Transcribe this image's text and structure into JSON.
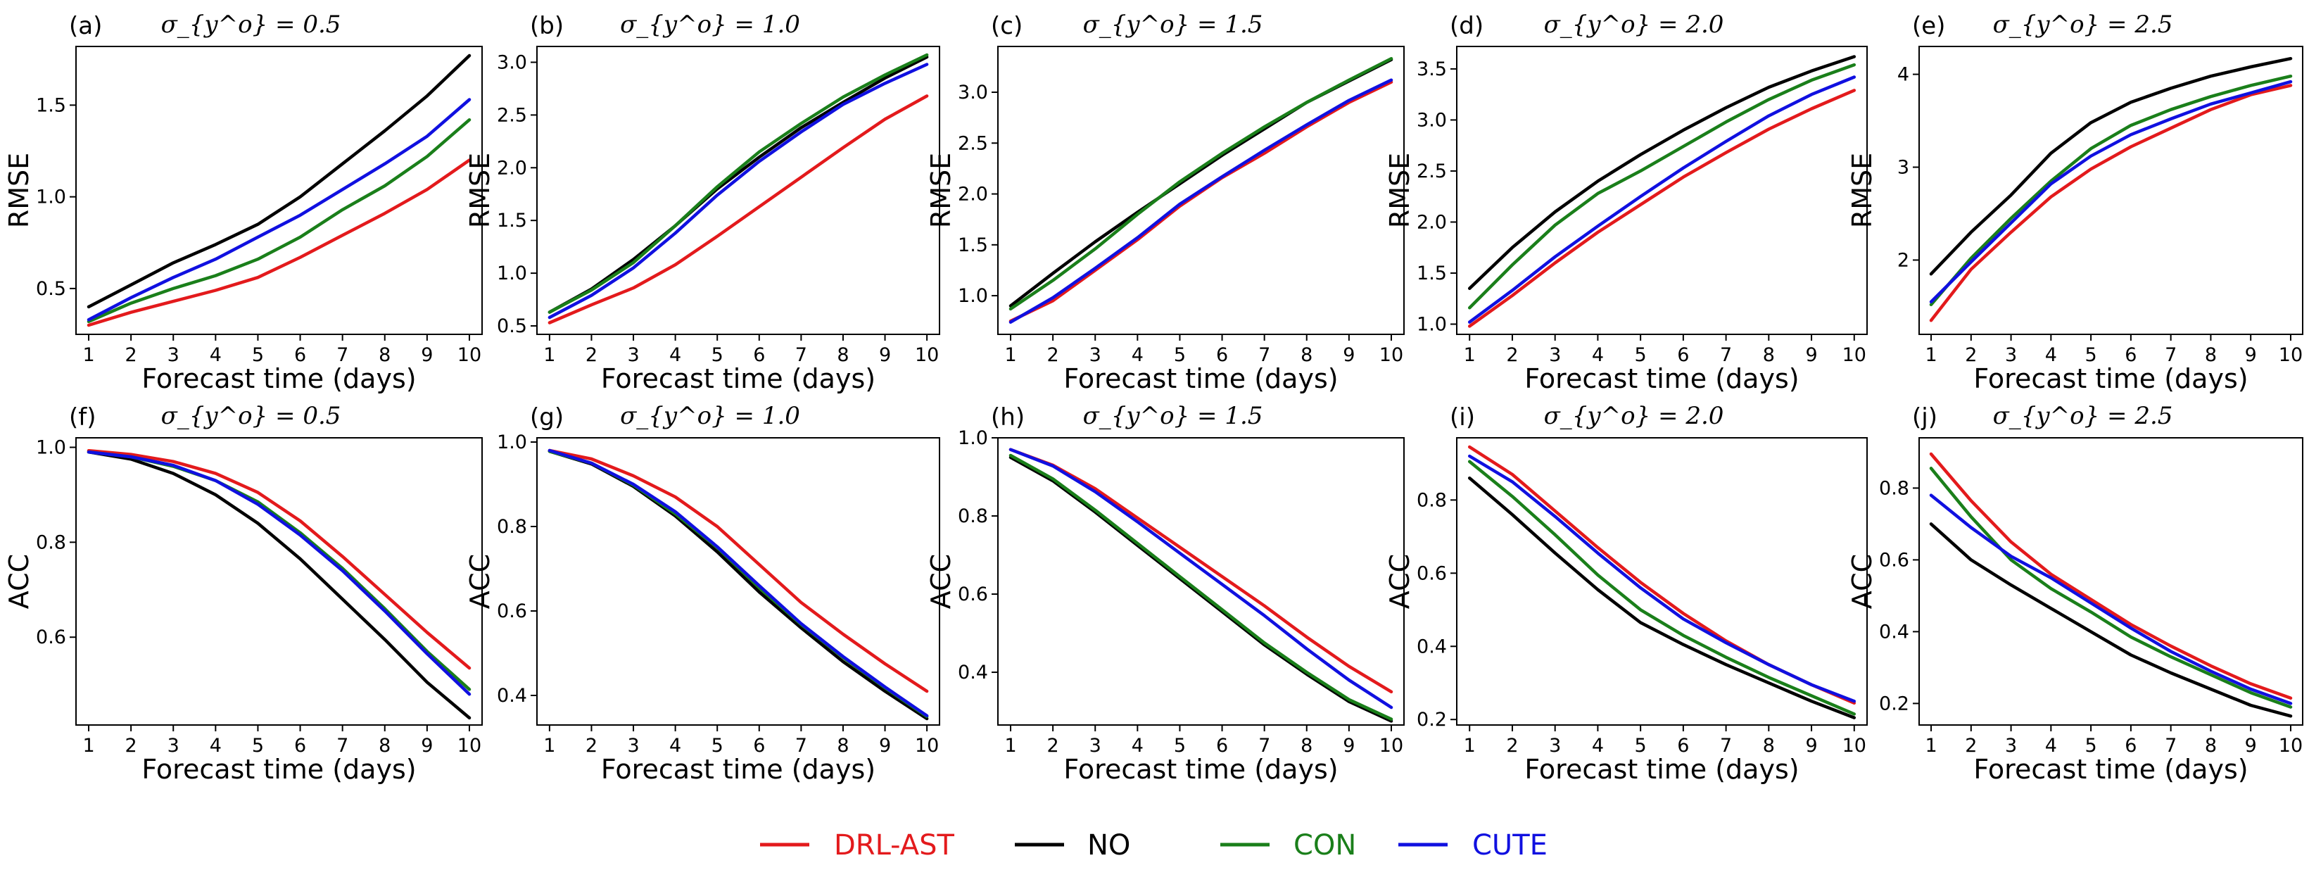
{
  "chart_data": [
    {
      "type": "line",
      "panel": "(a)",
      "title": "σ_{y^o} = 0.5",
      "xlabel": "Forecast time (days)",
      "ylabel": "RMSE",
      "x": [
        1,
        2,
        3,
        4,
        5,
        6,
        7,
        8,
        9,
        10
      ],
      "xlim": [
        0.7,
        10.3
      ],
      "ylim": [
        0.25,
        1.82
      ],
      "yticks": [
        0.5,
        1.0,
        1.5
      ],
      "ytick_labels": [
        "0.5",
        "1.0",
        "1.5"
      ],
      "series": [
        {
          "name": "DRL-AST",
          "values": [
            0.3,
            0.37,
            0.43,
            0.49,
            0.56,
            0.67,
            0.79,
            0.91,
            1.04,
            1.2
          ]
        },
        {
          "name": "NO",
          "values": [
            0.4,
            0.52,
            0.64,
            0.74,
            0.85,
            1.0,
            1.18,
            1.36,
            1.55,
            1.77
          ]
        },
        {
          "name": "CON",
          "values": [
            0.32,
            0.42,
            0.5,
            0.57,
            0.66,
            0.78,
            0.93,
            1.06,
            1.22,
            1.42
          ]
        },
        {
          "name": "CUTE",
          "values": [
            0.33,
            0.45,
            0.56,
            0.66,
            0.78,
            0.9,
            1.04,
            1.18,
            1.33,
            1.53
          ]
        }
      ]
    },
    {
      "type": "line",
      "panel": "(b)",
      "title": "σ_{y^o} = 1.0",
      "xlabel": "Forecast time (days)",
      "ylabel": "RMSE",
      "x": [
        1,
        2,
        3,
        4,
        5,
        6,
        7,
        8,
        9,
        10
      ],
      "xlim": [
        0.7,
        10.3
      ],
      "ylim": [
        0.42,
        3.15
      ],
      "yticks": [
        0.5,
        1.0,
        1.5,
        2.0,
        2.5,
        3.0
      ],
      "ytick_labels": [
        "0.5",
        "1.0",
        "1.5",
        "2.0",
        "2.5",
        "3.0"
      ],
      "series": [
        {
          "name": "DRL-AST",
          "values": [
            0.53,
            0.7,
            0.86,
            1.08,
            1.35,
            1.63,
            1.91,
            2.19,
            2.46,
            2.68
          ]
        },
        {
          "name": "NO",
          "values": [
            0.63,
            0.85,
            1.13,
            1.45,
            1.8,
            2.1,
            2.38,
            2.62,
            2.85,
            3.05
          ]
        },
        {
          "name": "CON",
          "values": [
            0.63,
            0.84,
            1.1,
            1.45,
            1.82,
            2.15,
            2.42,
            2.67,
            2.88,
            3.07
          ]
        },
        {
          "name": "CUTE",
          "values": [
            0.58,
            0.79,
            1.05,
            1.38,
            1.74,
            2.06,
            2.34,
            2.6,
            2.8,
            2.98
          ]
        }
      ]
    },
    {
      "type": "line",
      "panel": "(c)",
      "title": "σ_{y^o} = 1.5",
      "xlabel": "Forecast time (days)",
      "ylabel": "RMSE",
      "x": [
        1,
        2,
        3,
        4,
        5,
        6,
        7,
        8,
        9,
        10
      ],
      "xlim": [
        0.7,
        10.3
      ],
      "ylim": [
        0.62,
        3.45
      ],
      "yticks": [
        1.0,
        1.5,
        2.0,
        2.5,
        3.0
      ],
      "ytick_labels": [
        "1.0",
        "1.5",
        "2.0",
        "2.5",
        "3.0"
      ],
      "series": [
        {
          "name": "DRL-AST",
          "values": [
            0.75,
            0.95,
            1.25,
            1.55,
            1.88,
            2.16,
            2.4,
            2.66,
            2.9,
            3.1
          ]
        },
        {
          "name": "NO",
          "values": [
            0.9,
            1.22,
            1.53,
            1.82,
            2.1,
            2.38,
            2.64,
            2.9,
            3.11,
            3.32
          ]
        },
        {
          "name": "CON",
          "values": [
            0.87,
            1.15,
            1.46,
            1.8,
            2.12,
            2.4,
            2.66,
            2.9,
            3.12,
            3.33
          ]
        },
        {
          "name": "CUTE",
          "values": [
            0.74,
            0.98,
            1.27,
            1.57,
            1.9,
            2.17,
            2.43,
            2.68,
            2.92,
            3.12
          ]
        }
      ]
    },
    {
      "type": "line",
      "panel": "(d)",
      "title": "σ_{y^o} = 2.0",
      "xlabel": "Forecast time (days)",
      "ylabel": "RMSE",
      "x": [
        1,
        2,
        3,
        4,
        5,
        6,
        7,
        8,
        9,
        10
      ],
      "xlim": [
        0.7,
        10.3
      ],
      "ylim": [
        0.9,
        3.72
      ],
      "yticks": [
        1.0,
        1.5,
        2.0,
        2.5,
        3.0,
        3.5
      ],
      "ytick_labels": [
        "1.0",
        "1.5",
        "2.0",
        "2.5",
        "3.0",
        "3.5"
      ],
      "series": [
        {
          "name": "DRL-AST",
          "values": [
            0.98,
            1.28,
            1.6,
            1.9,
            2.17,
            2.44,
            2.68,
            2.91,
            3.11,
            3.29
          ]
        },
        {
          "name": "NO",
          "values": [
            1.35,
            1.75,
            2.1,
            2.4,
            2.66,
            2.9,
            3.12,
            3.32,
            3.48,
            3.62
          ]
        },
        {
          "name": "CON",
          "values": [
            1.16,
            1.58,
            1.97,
            2.28,
            2.5,
            2.74,
            2.98,
            3.2,
            3.39,
            3.54
          ]
        },
        {
          "name": "CUTE",
          "values": [
            1.02,
            1.33,
            1.66,
            1.96,
            2.25,
            2.53,
            2.79,
            3.04,
            3.25,
            3.42
          ]
        }
      ]
    },
    {
      "type": "line",
      "panel": "(e)",
      "title": "σ_{y^o} = 2.5",
      "xlabel": "Forecast time (days)",
      "ylabel": "RMSE",
      "x": [
        1,
        2,
        3,
        4,
        5,
        6,
        7,
        8,
        9,
        10
      ],
      "xlim": [
        0.7,
        10.3
      ],
      "ylim": [
        1.2,
        4.3
      ],
      "yticks": [
        2,
        3,
        4
      ],
      "ytick_labels": [
        "2",
        "3",
        "4"
      ],
      "series": [
        {
          "name": "DRL-AST",
          "values": [
            1.35,
            1.9,
            2.3,
            2.68,
            2.98,
            3.22,
            3.42,
            3.62,
            3.78,
            3.88
          ]
        },
        {
          "name": "NO",
          "values": [
            1.85,
            2.3,
            2.7,
            3.15,
            3.48,
            3.7,
            3.85,
            3.98,
            4.08,
            4.17
          ]
        },
        {
          "name": "CON",
          "values": [
            1.52,
            2.02,
            2.45,
            2.85,
            3.2,
            3.45,
            3.62,
            3.76,
            3.88,
            3.98
          ]
        },
        {
          "name": "CUTE",
          "values": [
            1.55,
            1.98,
            2.4,
            2.82,
            3.12,
            3.35,
            3.52,
            3.68,
            3.8,
            3.92
          ]
        }
      ]
    },
    {
      "type": "line",
      "panel": "(f)",
      "title": "σ_{y^o} = 0.5",
      "xlabel": "Forecast time (days)",
      "ylabel": "ACC",
      "x": [
        1,
        2,
        3,
        4,
        5,
        6,
        7,
        8,
        9,
        10
      ],
      "xlim": [
        0.7,
        10.3
      ],
      "ylim": [
        0.415,
        1.02
      ],
      "yticks": [
        0.6,
        0.8,
        1.0
      ],
      "ytick_labels": [
        "0.6",
        "0.8",
        "1.0"
      ],
      "series": [
        {
          "name": "DRL-AST",
          "values": [
            0.993,
            0.985,
            0.97,
            0.945,
            0.905,
            0.845,
            0.77,
            0.69,
            0.61,
            0.535
          ]
        },
        {
          "name": "NO",
          "values": [
            0.99,
            0.975,
            0.945,
            0.9,
            0.84,
            0.765,
            0.68,
            0.595,
            0.505,
            0.43
          ]
        },
        {
          "name": "CON",
          "values": [
            0.99,
            0.98,
            0.96,
            0.93,
            0.885,
            0.82,
            0.745,
            0.66,
            0.57,
            0.49
          ]
        },
        {
          "name": "CUTE",
          "values": [
            0.99,
            0.98,
            0.962,
            0.93,
            0.88,
            0.815,
            0.74,
            0.655,
            0.565,
            0.48
          ]
        }
      ]
    },
    {
      "type": "line",
      "panel": "(g)",
      "title": "σ_{y^o} = 1.0",
      "xlabel": "Forecast time (days)",
      "ylabel": "ACC",
      "x": [
        1,
        2,
        3,
        4,
        5,
        6,
        7,
        8,
        9,
        10
      ],
      "xlim": [
        0.7,
        10.3
      ],
      "ylim": [
        0.33,
        1.01
      ],
      "yticks": [
        0.4,
        0.6,
        0.8,
        1.0
      ],
      "ytick_labels": [
        "0.4",
        "0.6",
        "0.8",
        "1.0"
      ],
      "series": [
        {
          "name": "DRL-AST",
          "values": [
            0.98,
            0.96,
            0.92,
            0.87,
            0.8,
            0.71,
            0.62,
            0.545,
            0.475,
            0.41
          ]
        },
        {
          "name": "NO",
          "values": [
            0.978,
            0.948,
            0.895,
            0.825,
            0.74,
            0.645,
            0.56,
            0.48,
            0.41,
            0.345
          ]
        },
        {
          "name": "CON",
          "values": [
            0.978,
            0.95,
            0.898,
            0.83,
            0.75,
            0.655,
            0.568,
            0.49,
            0.418,
            0.35
          ]
        },
        {
          "name": "CUTE",
          "values": [
            0.98,
            0.95,
            0.9,
            0.835,
            0.752,
            0.66,
            0.57,
            0.492,
            0.42,
            0.352
          ]
        }
      ]
    },
    {
      "type": "line",
      "panel": "(h)",
      "title": "σ_{y^o} = 1.5",
      "xlabel": "Forecast time (days)",
      "ylabel": "ACC",
      "x": [
        1,
        2,
        3,
        4,
        5,
        6,
        7,
        8,
        9,
        10
      ],
      "xlim": [
        0.7,
        10.3
      ],
      "ylim": [
        0.265,
        1.0
      ],
      "yticks": [
        0.4,
        0.6,
        0.8,
        1.0
      ],
      "ytick_labels": [
        "0.4",
        "0.6",
        "0.8",
        "1.0"
      ],
      "series": [
        {
          "name": "DRL-AST",
          "values": [
            0.97,
            0.93,
            0.87,
            0.795,
            0.72,
            0.645,
            0.57,
            0.49,
            0.415,
            0.35
          ]
        },
        {
          "name": "NO",
          "values": [
            0.95,
            0.89,
            0.81,
            0.725,
            0.64,
            0.555,
            0.47,
            0.395,
            0.325,
            0.275
          ]
        },
        {
          "name": "CON",
          "values": [
            0.955,
            0.895,
            0.815,
            0.73,
            0.645,
            0.56,
            0.475,
            0.4,
            0.33,
            0.28
          ]
        },
        {
          "name": "CUTE",
          "values": [
            0.97,
            0.928,
            0.862,
            0.785,
            0.705,
            0.625,
            0.545,
            0.46,
            0.38,
            0.31
          ]
        }
      ]
    },
    {
      "type": "line",
      "panel": "(i)",
      "title": "σ_{y^o} = 2.0",
      "xlabel": "Forecast time (days)",
      "ylabel": "ACC",
      "x": [
        1,
        2,
        3,
        4,
        5,
        6,
        7,
        8,
        9,
        10
      ],
      "xlim": [
        0.7,
        10.3
      ],
      "ylim": [
        0.185,
        0.97
      ],
      "yticks": [
        0.2,
        0.4,
        0.6,
        0.8
      ],
      "ytick_labels": [
        "0.2",
        "0.4",
        "0.6",
        "0.8"
      ],
      "series": [
        {
          "name": "DRL-AST",
          "values": [
            0.945,
            0.87,
            0.77,
            0.67,
            0.575,
            0.49,
            0.415,
            0.35,
            0.295,
            0.245
          ]
        },
        {
          "name": "NO",
          "values": [
            0.86,
            0.76,
            0.655,
            0.555,
            0.465,
            0.405,
            0.35,
            0.3,
            0.25,
            0.205
          ]
        },
        {
          "name": "CON",
          "values": [
            0.905,
            0.81,
            0.705,
            0.595,
            0.5,
            0.43,
            0.37,
            0.315,
            0.265,
            0.215
          ]
        },
        {
          "name": "CUTE",
          "values": [
            0.92,
            0.85,
            0.755,
            0.655,
            0.56,
            0.475,
            0.41,
            0.35,
            0.295,
            0.25
          ]
        }
      ]
    },
    {
      "type": "line",
      "panel": "(j)",
      "title": "σ_{y^o} = 2.5",
      "xlabel": "Forecast time (days)",
      "ylabel": "ACC",
      "x": [
        1,
        2,
        3,
        4,
        5,
        6,
        7,
        8,
        9,
        10
      ],
      "xlim": [
        0.7,
        10.3
      ],
      "ylim": [
        0.14,
        0.94
      ],
      "yticks": [
        0.2,
        0.4,
        0.6,
        0.8
      ],
      "ytick_labels": [
        "0.2",
        "0.4",
        "0.6",
        "0.8"
      ],
      "series": [
        {
          "name": "DRL-AST",
          "values": [
            0.895,
            0.765,
            0.65,
            0.56,
            0.49,
            0.42,
            0.36,
            0.305,
            0.255,
            0.215
          ]
        },
        {
          "name": "NO",
          "values": [
            0.7,
            0.6,
            0.53,
            0.465,
            0.4,
            0.335,
            0.285,
            0.24,
            0.195,
            0.165
          ]
        },
        {
          "name": "CON",
          "values": [
            0.855,
            0.72,
            0.6,
            0.52,
            0.455,
            0.385,
            0.33,
            0.28,
            0.23,
            0.19
          ]
        },
        {
          "name": "CUTE",
          "values": [
            0.78,
            0.69,
            0.61,
            0.55,
            0.48,
            0.41,
            0.345,
            0.29,
            0.24,
            0.2
          ]
        }
      ]
    }
  ],
  "legend": [
    {
      "name": "DRL-AST",
      "color": "#e31a1c"
    },
    {
      "name": "NO",
      "color": "#000000"
    },
    {
      "name": "CON",
      "color": "#1a7f1a"
    },
    {
      "name": "CUTE",
      "color": "#1010e0"
    }
  ],
  "colors": {
    "DRL-AST": "#e31a1c",
    "NO": "#000000",
    "CON": "#1a7f1a",
    "CUTE": "#1010e0"
  }
}
